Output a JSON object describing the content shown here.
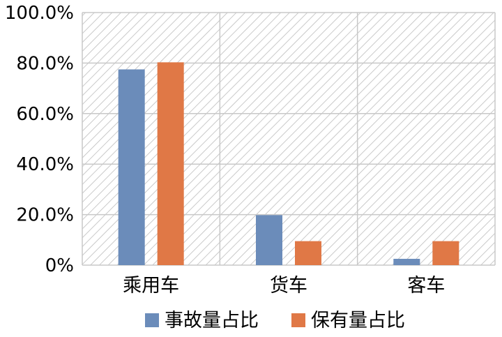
{
  "chart_data": {
    "type": "bar",
    "categories": [
      "乘用车",
      "货车",
      "客车"
    ],
    "series": [
      {
        "name": "事故量占比",
        "values": [
          77.5,
          19.8,
          2.5
        ],
        "color": "#6b8cba"
      },
      {
        "name": "保有量占比",
        "values": [
          80.3,
          9.5,
          9.5
        ],
        "color": "#e07846"
      }
    ],
    "yticks": [
      "0%",
      "20.0%",
      "40.0%",
      "60.0%",
      "80.0%",
      "100.0%"
    ],
    "ylim": [
      0,
      100
    ],
    "grid": true,
    "plot_background": "diagonal hatch",
    "legend_position": "bottom"
  }
}
